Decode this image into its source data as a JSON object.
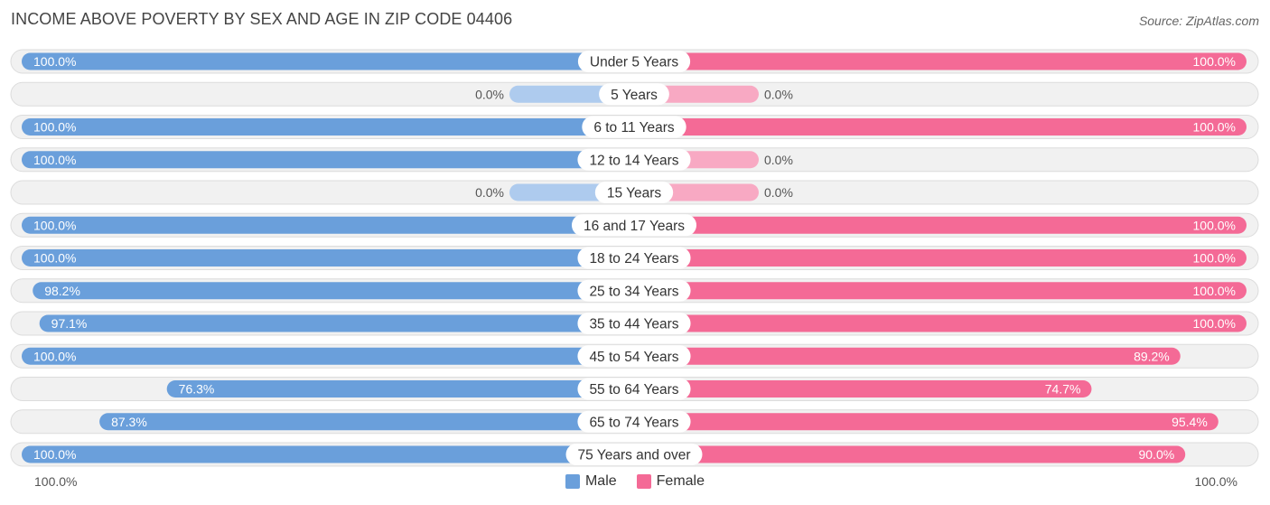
{
  "header": {
    "title": "INCOME ABOVE POVERTY BY SEX AND AGE IN ZIP CODE 04406",
    "source": "Source: ZipAtlas.com"
  },
  "colors": {
    "male_full": "#6a9fdb",
    "male_light": "#aecbee",
    "female_full": "#f46a96",
    "female_light": "#f8a9c3",
    "row_bg": "#f1f1f1",
    "row_border": "#dcdcdc"
  },
  "axis": {
    "left_label": "100.0%",
    "right_label": "100.0%"
  },
  "legend": {
    "male": {
      "label": "Male",
      "color": "#6a9fdb"
    },
    "female": {
      "label": "Female",
      "color": "#f46a96"
    }
  },
  "chart_data": {
    "type": "bar",
    "orientation": "horizontal-diverging",
    "title": "INCOME ABOVE POVERTY BY SEX AND AGE IN ZIP CODE 04406",
    "xlim": [
      -100,
      100
    ],
    "legend_position": "bottom-center",
    "categories": [
      "Under 5 Years",
      "5 Years",
      "6 to 11 Years",
      "12 to 14 Years",
      "15 Years",
      "16 and 17 Years",
      "18 to 24 Years",
      "25 to 34 Years",
      "35 to 44 Years",
      "45 to 54 Years",
      "55 to 64 Years",
      "65 to 74 Years",
      "75 Years and over"
    ],
    "series": [
      {
        "name": "Male",
        "values": [
          100.0,
          0.0,
          100.0,
          100.0,
          0.0,
          100.0,
          100.0,
          98.2,
          97.1,
          100.0,
          76.3,
          87.3,
          100.0
        ],
        "labels": [
          "100.0%",
          "0.0%",
          "100.0%",
          "100.0%",
          "0.0%",
          "100.0%",
          "100.0%",
          "98.2%",
          "97.1%",
          "100.0%",
          "76.3%",
          "87.3%",
          "100.0%"
        ]
      },
      {
        "name": "Female",
        "values": [
          100.0,
          0.0,
          100.0,
          0.0,
          0.0,
          100.0,
          100.0,
          100.0,
          100.0,
          89.2,
          74.7,
          95.4,
          90.0
        ],
        "labels": [
          "100.0%",
          "0.0%",
          "100.0%",
          "0.0%",
          "0.0%",
          "100.0%",
          "100.0%",
          "100.0%",
          "100.0%",
          "89.2%",
          "74.7%",
          "95.4%",
          "90.0%"
        ]
      }
    ]
  }
}
